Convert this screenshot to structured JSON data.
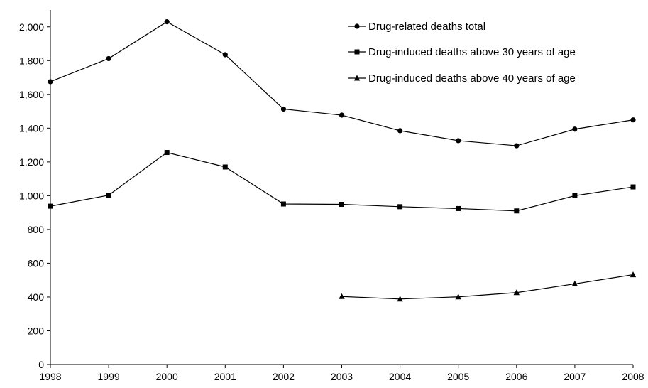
{
  "chart_data": {
    "type": "line",
    "title": "",
    "xlabel": "",
    "ylabel": "",
    "x": [
      1998,
      1999,
      2000,
      2001,
      2002,
      2003,
      2004,
      2005,
      2006,
      2007,
      2008
    ],
    "xticks": [
      "1998",
      "1999",
      "2000",
      "2001",
      "2002",
      "2003",
      "2004",
      "2005",
      "2006",
      "2007",
      "2008"
    ],
    "ylim": [
      0,
      2100
    ],
    "yticks": [
      0,
      200,
      400,
      600,
      800,
      1000,
      1200,
      1400,
      1600,
      1800,
      2000
    ],
    "ytick_labels": [
      "0",
      "200",
      "400",
      "600",
      "800",
      "1,000",
      "1,200",
      "1,400",
      "1,600",
      "1,800",
      "2,000"
    ],
    "grid": false,
    "legend_position": "top-right",
    "series": [
      {
        "name": "Drug-related deaths total",
        "marker": "circle",
        "values": [
          1675,
          1812,
          2030,
          1835,
          1513,
          1477,
          1385,
          1326,
          1296,
          1394,
          1449
        ]
      },
      {
        "name": "Drug-induced deaths above 30 years of age",
        "marker": "square",
        "values": [
          938,
          1003,
          1256,
          1170,
          951,
          949,
          935,
          924,
          910,
          1000,
          1052
        ]
      },
      {
        "name": "Drug-induced deaths above 40 years of age",
        "marker": "triangle",
        "values": [
          null,
          null,
          null,
          null,
          null,
          403,
          388,
          401,
          426,
          478,
          532
        ]
      }
    ]
  }
}
